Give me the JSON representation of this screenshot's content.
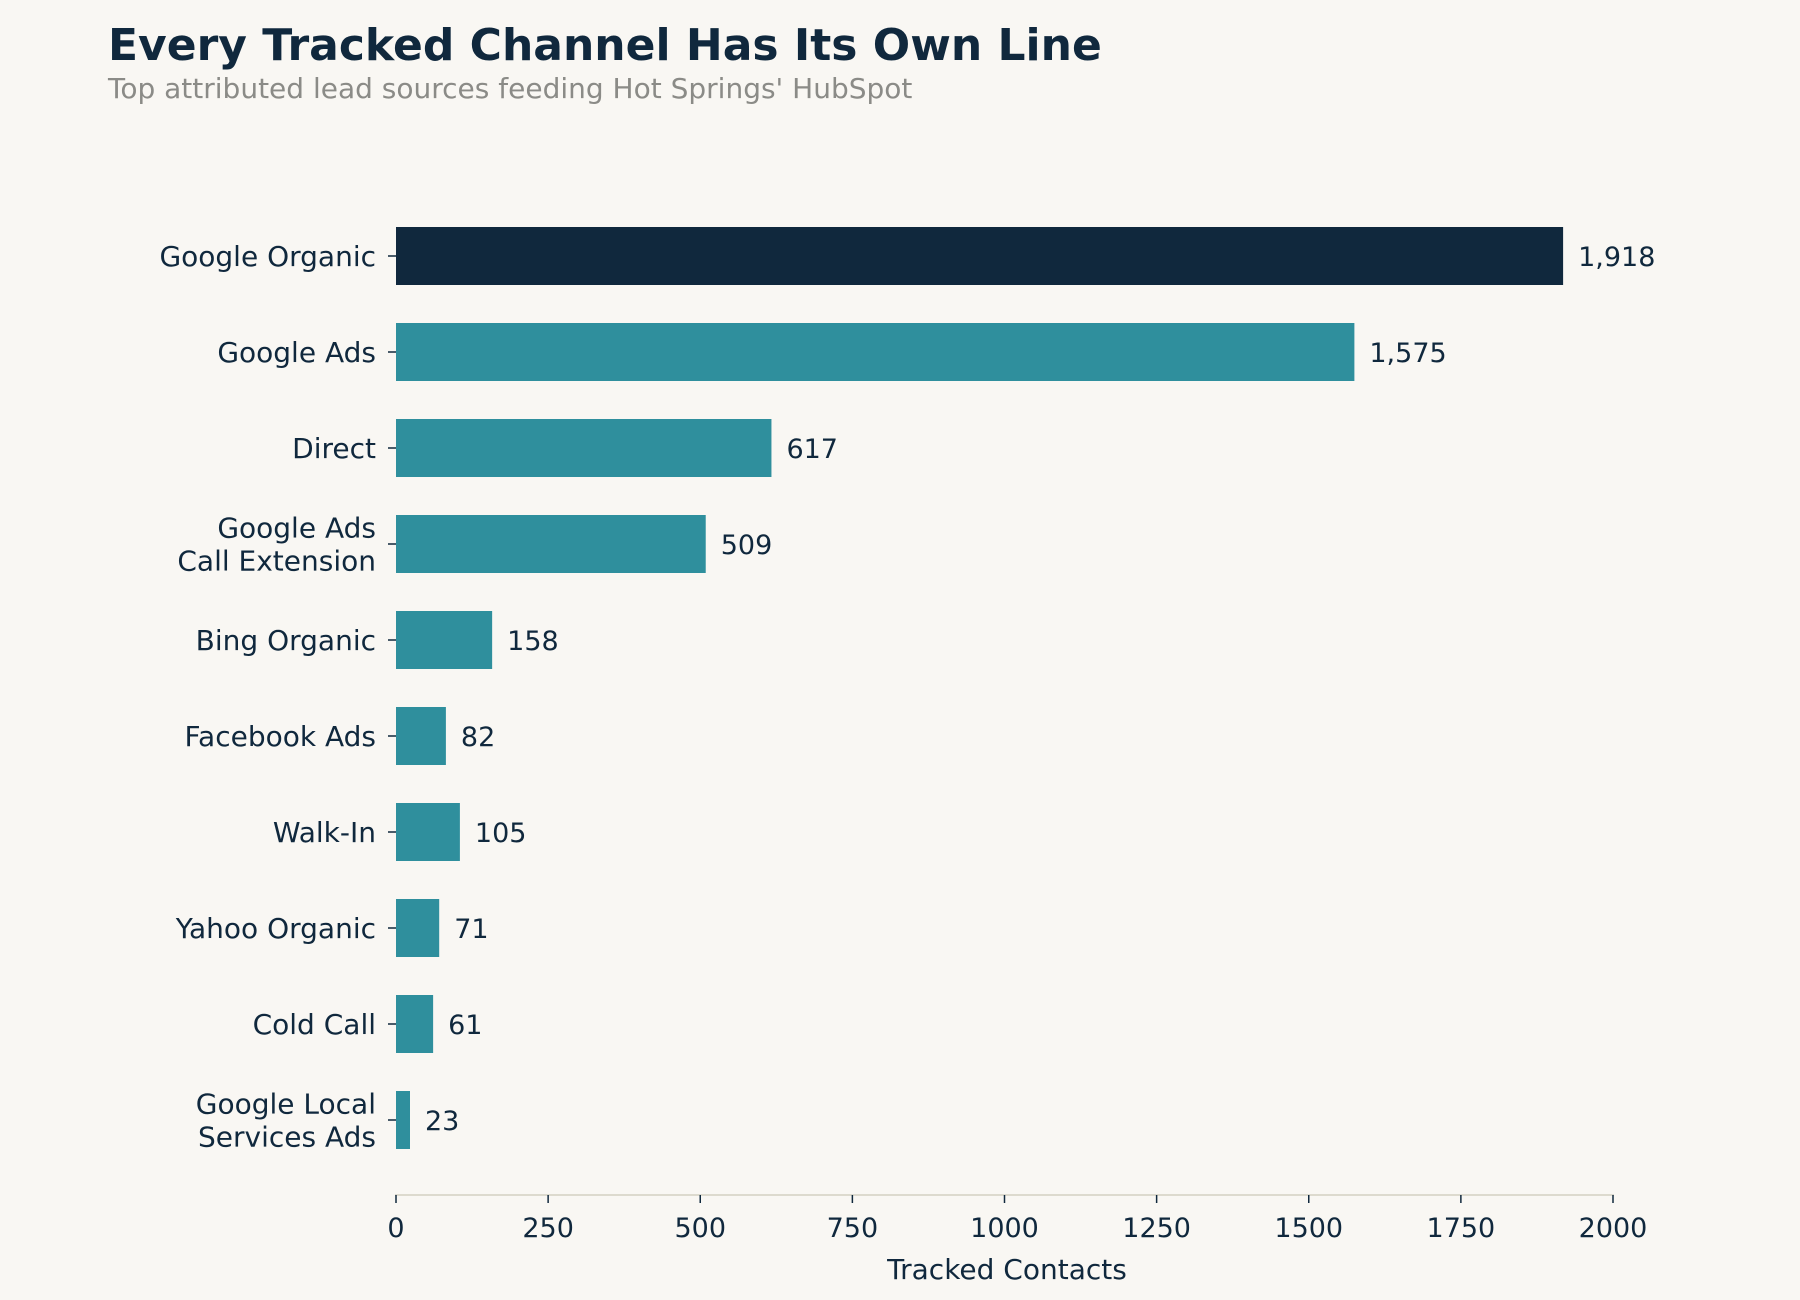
{
  "chart_data": {
    "type": "bar",
    "orientation": "horizontal",
    "title": "Every Tracked Channel Has Its Own Line",
    "subtitle": "Top attributed lead sources feeding Hot Springs' HubSpot",
    "xlabel": "Tracked Contacts",
    "ylabel": "",
    "xlim": [
      0,
      2000
    ],
    "xticks": [
      "0",
      "250",
      "500",
      "750",
      "1000",
      "1250",
      "1500",
      "1750",
      "2000"
    ],
    "grid": false,
    "legend": "none",
    "categories": [
      "Google Organic",
      "Google Ads",
      "Direct",
      "Google Ads\nCall Extension",
      "Bing Organic",
      "Facebook Ads",
      "Walk-In",
      "Yahoo Organic",
      "Cold Call",
      "Google Local\nServices Ads"
    ],
    "values": [
      1918,
      1575,
      617,
      509,
      158,
      82,
      105,
      71,
      61,
      23
    ],
    "value_labels": [
      "1,918",
      "1,575",
      "617",
      "509",
      "158",
      "82",
      "105",
      "71",
      "61",
      "23"
    ],
    "highlight_index": 0,
    "colors": {
      "highlight": "#10283d",
      "bar": "#2f8f9d",
      "background": "#f9f7f3",
      "text": "#10283d",
      "subtitle": "#8b8b87",
      "axis": "#d4d0c2"
    }
  }
}
